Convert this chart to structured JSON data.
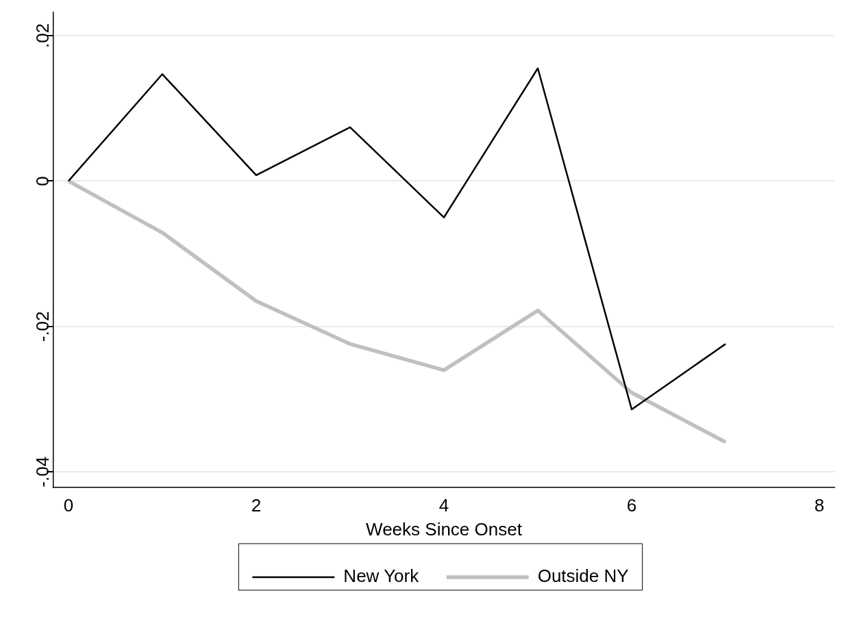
{
  "chart_data": {
    "type": "line",
    "xlabel": "Weeks Since Onset",
    "x": [
      0,
      1,
      2,
      3,
      4,
      5,
      6,
      7
    ],
    "series": [
      {
        "name": "New York",
        "color": "#000000",
        "values": [
          0,
          0.0147,
          0.0008,
          0.0074,
          -0.005,
          0.0155,
          -0.0314,
          -0.0224
        ]
      },
      {
        "name": "Outside NY",
        "color": "#c0c0c0",
        "values": [
          0,
          -0.0071,
          -0.0165,
          -0.0224,
          -0.026,
          -0.0178,
          -0.0291,
          -0.0359
        ]
      }
    ],
    "xlim": [
      -0.16,
      8.16
    ],
    "xticks": [
      0,
      2,
      4,
      6,
      8
    ],
    "ylim": [
      -0.0421,
      0.0232
    ],
    "yticks": [
      {
        "value": -0.04,
        "label": "-.04"
      },
      {
        "value": -0.02,
        "label": "-.02"
      },
      {
        "value": 0,
        "label": "0"
      },
      {
        "value": 0.02,
        "label": ".02"
      }
    ],
    "grid": "y",
    "legend": "bottom",
    "marker": "none",
    "line_style": "solid"
  }
}
